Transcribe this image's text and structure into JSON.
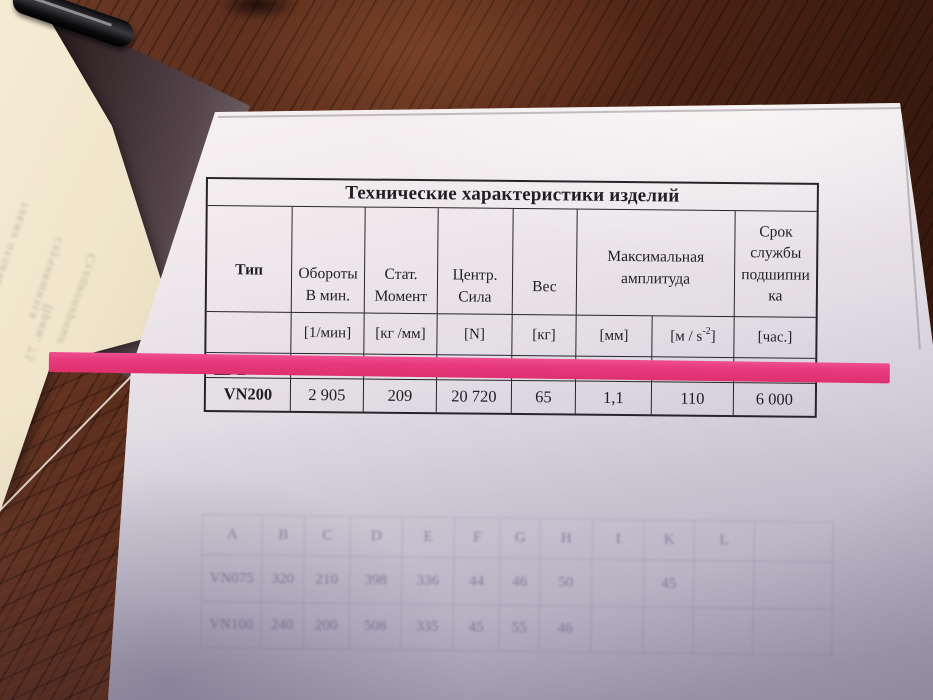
{
  "annotation": {
    "highlight_color": "#e73b7d"
  },
  "page": {
    "table": {
      "title": "Технические характеристики изделий",
      "header": {
        "type": "Тип",
        "rpm_l1": "Обороты",
        "rpm_l2": "В мин.",
        "moment_l1": "Стат.",
        "moment_l2": "Момент",
        "force_l1": "Центр.",
        "force_l2": "Сила",
        "weight": "Вес",
        "amp_l1": "Максимальная",
        "amp_l2": "амплитуда",
        "life_l1": "Срок",
        "life_l2": "службы",
        "life_l3": "подшипни",
        "life_l4": "ка"
      },
      "units": {
        "rpm": "[1/мин]",
        "moment": "[кг /мм]",
        "force": "[N]",
        "weight": "[кг]",
        "amp_mm": "[мм]",
        "amp_ms2_pre": "[м / s",
        "amp_ms2_sup": "-2",
        "amp_ms2_post": "]",
        "life": "[час.]"
      },
      "rows": {
        "covered": {
          "type": "",
          "rpm": "",
          "moment": "",
          "force": "",
          "weight": "",
          "amp_mm": "",
          "amp_ms2": "",
          "life": ""
        },
        "vn200": {
          "type": "VN200",
          "rpm": "2 905",
          "moment": "209",
          "force": "20 720",
          "weight": "65",
          "amp_mm": "1,1",
          "amp_ms2": "110",
          "life": "6 000"
        }
      }
    },
    "ghost_table": {
      "headers": [
        "A",
        "B",
        "C",
        "D",
        "E",
        "F",
        "G",
        "H",
        "I",
        "K",
        "L",
        ""
      ],
      "rows": [
        [
          "VN075",
          "320",
          "210",
          "398",
          "336",
          "44",
          "46",
          "50",
          "",
          "45",
          "",
          ""
        ],
        [
          "VN100",
          "240",
          "200",
          "508",
          "335",
          "45",
          "55",
          "46",
          "",
          "",
          "",
          ""
        ]
      ]
    }
  },
  "cream_sheet": {
    "show_through_fragments": [
      "также отлича",
      "случившихся",
      "Стационарные",
      "Прим. 73"
    ]
  }
}
